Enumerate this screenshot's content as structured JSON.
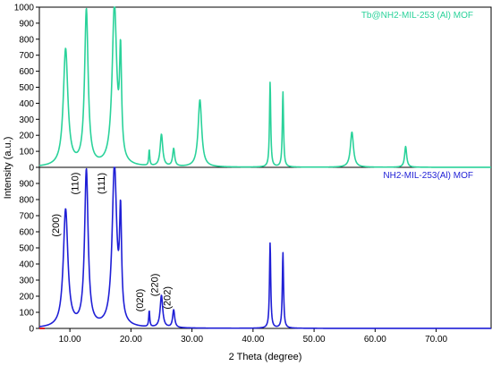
{
  "chart_data": {
    "type": "line",
    "xlabel": "2 Theta (degree)",
    "ylabel": "Intensity (a.u.)",
    "xlim": [
      5,
      79
    ],
    "x_ticks": [
      10,
      20,
      30,
      40,
      50,
      60,
      70
    ],
    "x_tick_labels": [
      "10.00",
      "20.00",
      "30.00",
      "40.00",
      "50.00",
      "60.00",
      "70.00"
    ],
    "panel_ylim": [
      0,
      1000
    ],
    "y_tick_labels": [
      "0",
      "100",
      "200",
      "300",
      "400",
      "500",
      "600",
      "700",
      "800",
      "900",
      "1000"
    ],
    "grid": false,
    "legend_position": "top-right",
    "series": [
      {
        "name": "Tb@NH2-MIL-253 (Al) MOF",
        "panel": "top",
        "color": "#2ad29a",
        "peaks": [
          {
            "x": 9.3,
            "y": 730,
            "w": 0.45
          },
          {
            "x": 12.7,
            "y": 970,
            "w": 0.35
          },
          {
            "x": 17.3,
            "y": 995,
            "w": 0.45
          },
          {
            "x": 18.3,
            "y": 630,
            "w": 0.2
          },
          {
            "x": 23.0,
            "y": 100,
            "w": 0.1
          },
          {
            "x": 25.0,
            "y": 200,
            "w": 0.25
          },
          {
            "x": 27.0,
            "y": 110,
            "w": 0.2
          },
          {
            "x": 31.3,
            "y": 420,
            "w": 0.35
          },
          {
            "x": 42.8,
            "y": 530,
            "w": 0.12
          },
          {
            "x": 44.9,
            "y": 470,
            "w": 0.12
          },
          {
            "x": 56.2,
            "y": 220,
            "w": 0.3
          },
          {
            "x": 65.0,
            "y": 130,
            "w": 0.2
          }
        ]
      },
      {
        "name": "NH2-MIL-253(Al) MOF",
        "panel": "bottom",
        "color": "#1f1fd6",
        "peaks": [
          {
            "x": 9.3,
            "y": 730,
            "w": 0.45
          },
          {
            "x": 12.7,
            "y": 970,
            "w": 0.35
          },
          {
            "x": 17.3,
            "y": 995,
            "w": 0.45
          },
          {
            "x": 18.3,
            "y": 630,
            "w": 0.2
          },
          {
            "x": 23.0,
            "y": 100,
            "w": 0.1
          },
          {
            "x": 25.0,
            "y": 200,
            "w": 0.25
          },
          {
            "x": 27.0,
            "y": 110,
            "w": 0.2
          },
          {
            "x": 42.8,
            "y": 530,
            "w": 0.12
          },
          {
            "x": 44.9,
            "y": 470,
            "w": 0.12
          }
        ]
      }
    ],
    "annotations": [
      {
        "text": "(200)",
        "x": 8.2,
        "y": 640
      },
      {
        "text": "(110)",
        "x": 11.4,
        "y": 900
      },
      {
        "text": "(111)",
        "x": 15.7,
        "y": 900
      },
      {
        "text": "(020)",
        "x": 22.0,
        "y": 175
      },
      {
        "text": "(220)",
        "x": 24.4,
        "y": 270
      },
      {
        "text": "(202)",
        "x": 26.5,
        "y": 190
      }
    ]
  }
}
